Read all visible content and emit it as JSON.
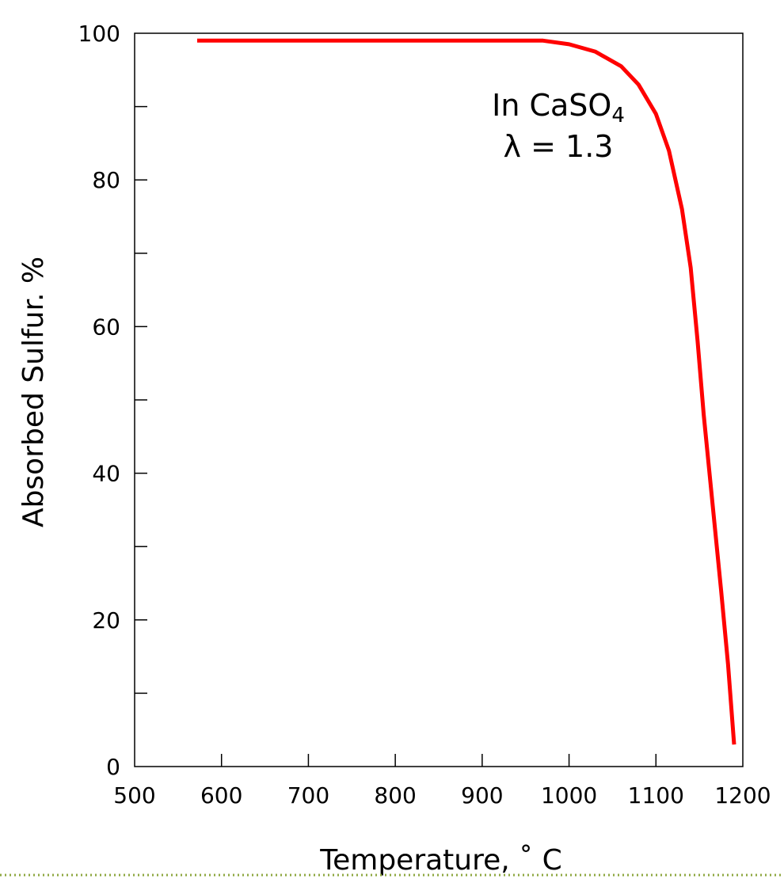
{
  "chart_data": {
    "type": "line",
    "title": "",
    "xlabel": "Temperature, ˚ C",
    "ylabel": "Absorbed Sulfur. %",
    "xlim": [
      500,
      1200
    ],
    "ylim": [
      0,
      100
    ],
    "x_ticks": [
      "500",
      "600",
      "700",
      "800",
      "900",
      "1000",
      "1100",
      "1200"
    ],
    "y_ticks": [
      "0",
      "20",
      "40",
      "60",
      "80",
      "100"
    ],
    "grid": false,
    "legend": "none",
    "annotation": {
      "line1_main": "In CaSO",
      "line1_sub": "4",
      "line2": "λ = 1.3"
    },
    "series": [
      {
        "color": "#ff0000",
        "x": [
          572,
          700,
          800,
          900,
          970,
          1000,
          1030,
          1060,
          1080,
          1100,
          1115,
          1130,
          1140,
          1148,
          1155,
          1165,
          1175,
          1183,
          1190
        ],
        "y": [
          99,
          99,
          99,
          99,
          99,
          98.5,
          97.5,
          95.5,
          93,
          89,
          84,
          76,
          68,
          58,
          48,
          36,
          24,
          14,
          3
        ]
      }
    ]
  }
}
